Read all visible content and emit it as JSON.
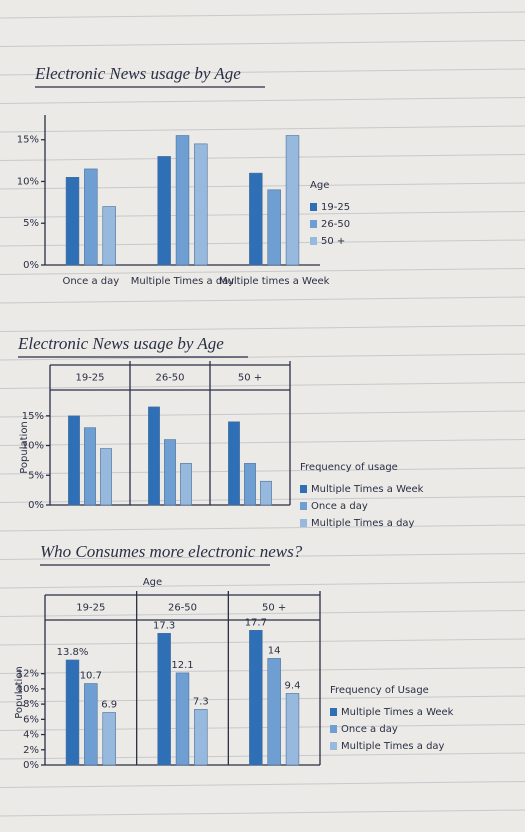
{
  "chart_data": [
    {
      "type": "bar",
      "title": "Electronic News usage by Age",
      "categories": [
        "Once a day",
        "Multiple Times a day",
        "Multiple times a Week"
      ],
      "series": [
        {
          "name": "19-25",
          "color": "#2f6fb5",
          "values": [
            10.5,
            13,
            11
          ]
        },
        {
          "name": "26-50",
          "color": "#6f9fd2",
          "values": [
            11.5,
            15.5,
            9
          ]
        },
        {
          "name": "50 +",
          "color": "#97b9dd",
          "values": [
            7,
            14.5,
            15.5
          ]
        }
      ],
      "legend_title": "Age",
      "ylim": [
        0,
        17
      ],
      "yticks": [
        {
          "value": 0,
          "label": "0%"
        },
        {
          "value": 5,
          "label": "5%"
        },
        {
          "value": 10,
          "label": "10%"
        },
        {
          "value": 15,
          "label": "15%"
        }
      ]
    },
    {
      "type": "bar",
      "title": "Electronic News usage by Age",
      "categories": [
        "19-25",
        "26-50",
        "50 +"
      ],
      "series": [
        {
          "name": "Multiple Times a Week",
          "color": "#2f6fb5",
          "values": [
            15,
            16.5,
            14
          ]
        },
        {
          "name": "Once a day",
          "color": "#6f9fd2",
          "values": [
            13,
            11,
            7
          ]
        },
        {
          "name": "Multiple Times a day",
          "color": "#97b9dd",
          "values": [
            9.5,
            7,
            4
          ]
        }
      ],
      "legend_title": "Frequency of usage",
      "y_label": "Population",
      "ylim": [
        0,
        18
      ],
      "yticks": [
        {
          "value": 0,
          "label": "0%"
        },
        {
          "value": 5,
          "label": "5%"
        },
        {
          "value": 10,
          "label": "10%"
        },
        {
          "value": 15,
          "label": "15%"
        }
      ]
    },
    {
      "type": "bar",
      "title": "Who Consumes more electronic news?",
      "x_label": "Age",
      "categories": [
        "19-25",
        "26-50",
        "50 +"
      ],
      "series": [
        {
          "name": "Multiple Times a Week",
          "color": "#2f6fb5",
          "values": [
            13.8,
            17.3,
            17.7
          ],
          "value_labels": [
            "13.8%",
            "17.3",
            "17.7"
          ]
        },
        {
          "name": "Once a day",
          "color": "#6f9fd2",
          "values": [
            10.7,
            12.1,
            14
          ],
          "value_labels": [
            "10.7",
            "12.1",
            "14"
          ]
        },
        {
          "name": "Multiple Times a day",
          "color": "#97b9dd",
          "values": [
            6.9,
            7.3,
            9.4
          ],
          "value_labels": [
            "6.9",
            "7.3",
            "9.4"
          ]
        }
      ],
      "legend_title": "Frequency of Usage",
      "y_label": "Population",
      "ylim": [
        0,
        18
      ],
      "yticks": [
        {
          "value": 0,
          "label": "0%"
        },
        {
          "value": 2,
          "label": "2%"
        },
        {
          "value": 4,
          "label": "4%"
        },
        {
          "value": 6,
          "label": "6%"
        },
        {
          "value": 8,
          "label": "8%"
        },
        {
          "value": 10,
          "label": "10%"
        },
        {
          "value": 12,
          "label": "12%"
        }
      ]
    }
  ]
}
